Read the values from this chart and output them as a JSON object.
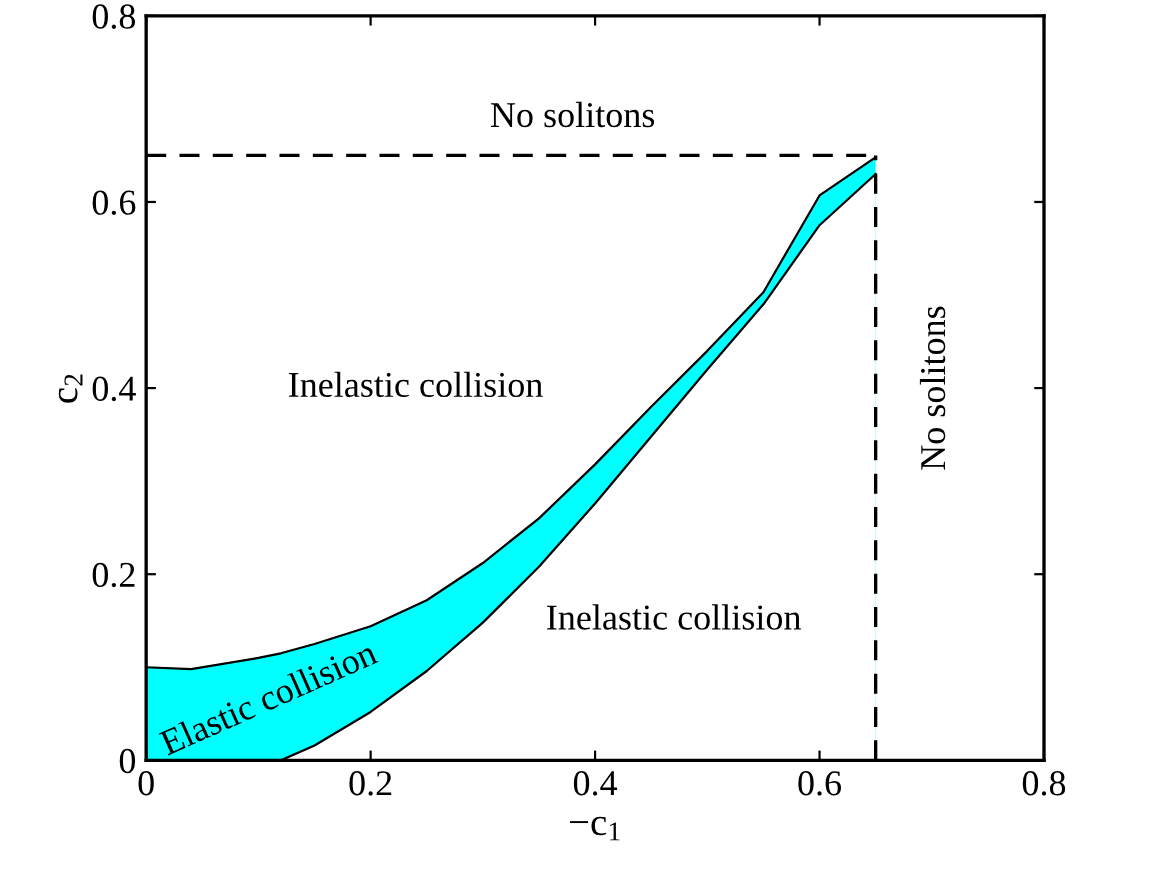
{
  "chart_data": {
    "type": "area",
    "xlabel": "−c$_{1}$",
    "ylabel": "c$_{2}$",
    "xlim": [
      0,
      0.8
    ],
    "ylim": [
      0,
      0.8
    ],
    "xticks": [
      0,
      0.2,
      0.4,
      0.6,
      0.8
    ],
    "yticks": [
      0,
      0.2,
      0.4,
      0.6,
      0.8
    ],
    "grid": false,
    "legend": false,
    "series": [
      {
        "color": "#00ffff",
        "x": [
          0,
          0.04,
          0.1,
          0.12,
          0.15,
          0.2,
          0.25,
          0.3,
          0.35,
          0.4,
          0.45,
          0.5,
          0.55,
          0.6,
          0.65
        ],
        "values": [
          0.1,
          0.098,
          0.11,
          0.115,
          0.125,
          0.144,
          0.172,
          0.212,
          0.26,
          0.318,
          0.38,
          0.44,
          0.503,
          0.607,
          0.648
        ]
      },
      {
        "color": "#ffffff",
        "x": [
          0.12,
          0.15,
          0.2,
          0.25,
          0.3,
          0.35,
          0.4,
          0.45,
          0.5,
          0.55,
          0.6,
          0.65
        ],
        "values": [
          0,
          0.016,
          0.052,
          0.096,
          0.148,
          0.208,
          0.276,
          0.348,
          0.42,
          0.49,
          0.575,
          0.63
        ]
      },
      {
        "type": "line",
        "color": "#000000",
        "line_style": "dashed",
        "x": [
          0,
          0.65
        ],
        "values": [
          0.65,
          0.65
        ]
      },
      {
        "type": "line",
        "color": "#000000",
        "line_style": "dashed",
        "x": [
          0.65,
          0.65
        ],
        "values": [
          0,
          0.65
        ]
      }
    ],
    "annotations": [
      "No solitons",
      "Inelastic collision",
      "Inelastic collision",
      "No solitons",
      "Elastic collision"
    ]
  }
}
